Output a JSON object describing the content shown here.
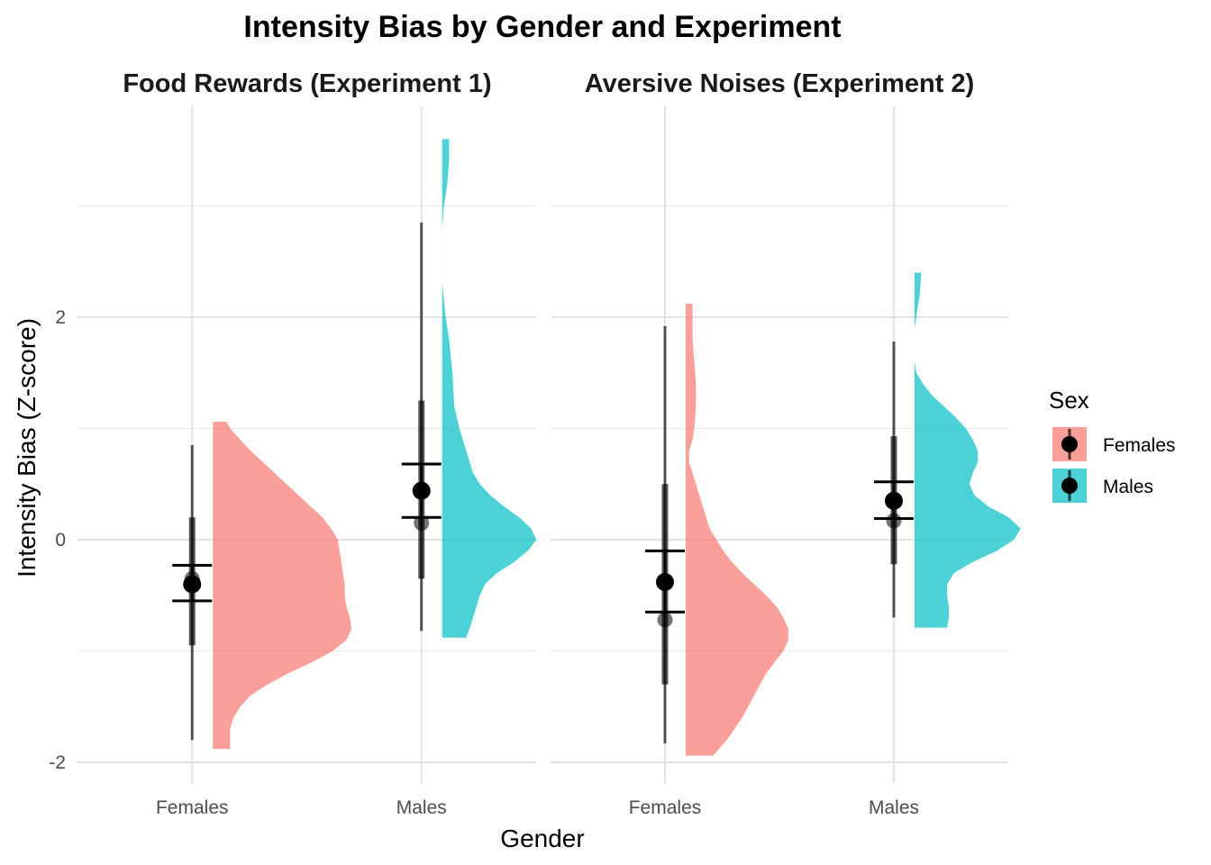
{
  "chart_data": {
    "type": "raincloud",
    "title": "Intensity Bias by Gender and Experiment",
    "xlabel": "Gender",
    "ylabel": "Intensity Bias (Z-score)",
    "ylim": [
      -2.2,
      3.9
    ],
    "y_ticks": [
      -2,
      0,
      2
    ],
    "y_tick_labels": [
      "-2",
      "0",
      "2"
    ],
    "grid": true,
    "categories": [
      "Females",
      "Males"
    ],
    "legend": {
      "title": "Sex",
      "position": "right",
      "entries": [
        {
          "label": "Females",
          "color": "#F8766D"
        },
        {
          "label": "Males",
          "color": "#00BFC4"
        }
      ]
    },
    "panels": [
      {
        "strip": "Food Rewards (Experiment 1)",
        "groups": [
          {
            "category": "Females",
            "color": "#F8766D",
            "box": {
              "min": -1.8,
              "q1": -0.95,
              "median": -0.35,
              "q3": 0.2,
              "max": 0.85
            },
            "mean": -0.4,
            "ci": [
              -0.55,
              -0.23
            ],
            "density": [
              [
                -1.88,
                0.1
              ],
              [
                -1.7,
                0.1
              ],
              [
                -1.6,
                0.12
              ],
              [
                -1.5,
                0.16
              ],
              [
                -1.4,
                0.22
              ],
              [
                -1.3,
                0.32
              ],
              [
                -1.2,
                0.44
              ],
              [
                -1.1,
                0.58
              ],
              [
                -1.0,
                0.7
              ],
              [
                -0.9,
                0.78
              ],
              [
                -0.8,
                0.81
              ],
              [
                -0.7,
                0.8
              ],
              [
                -0.6,
                0.78
              ],
              [
                -0.5,
                0.77
              ],
              [
                -0.4,
                0.77
              ],
              [
                -0.3,
                0.76
              ],
              [
                -0.2,
                0.75
              ],
              [
                -0.1,
                0.74
              ],
              [
                0.0,
                0.73
              ],
              [
                0.1,
                0.69
              ],
              [
                0.2,
                0.64
              ],
              [
                0.3,
                0.57
              ],
              [
                0.4,
                0.5
              ],
              [
                0.5,
                0.43
              ],
              [
                0.6,
                0.36
              ],
              [
                0.7,
                0.29
              ],
              [
                0.8,
                0.22
              ],
              [
                0.9,
                0.16
              ],
              [
                1.0,
                0.1
              ],
              [
                1.06,
                0.08
              ]
            ]
          },
          {
            "category": "Males",
            "color": "#00BFC4",
            "box": {
              "min": -0.82,
              "q1": -0.35,
              "median": 0.15,
              "q3": 1.25,
              "max": 2.85
            },
            "mean": 0.44,
            "ci": [
              0.2,
              0.68
            ],
            "density": [
              [
                -0.88,
                0.14
              ],
              [
                -0.8,
                0.16
              ],
              [
                -0.7,
                0.18
              ],
              [
                -0.6,
                0.2
              ],
              [
                -0.5,
                0.22
              ],
              [
                -0.4,
                0.25
              ],
              [
                -0.3,
                0.32
              ],
              [
                -0.2,
                0.42
              ],
              [
                -0.1,
                0.5
              ],
              [
                0.0,
                0.55
              ],
              [
                0.1,
                0.52
              ],
              [
                0.2,
                0.45
              ],
              [
                0.3,
                0.36
              ],
              [
                0.4,
                0.28
              ],
              [
                0.5,
                0.22
              ],
              [
                0.6,
                0.18
              ],
              [
                0.8,
                0.14
              ],
              [
                1.0,
                0.1
              ],
              [
                1.2,
                0.07
              ],
              [
                1.5,
                0.06
              ],
              [
                1.8,
                0.04
              ],
              [
                2.0,
                0.02
              ],
              [
                2.3,
                0.0
              ],
              [
                2.6,
                0.0
              ],
              [
                2.8,
                0.0
              ],
              [
                3.0,
                0.01
              ],
              [
                3.2,
                0.03
              ],
              [
                3.4,
                0.04
              ],
              [
                3.6,
                0.04
              ]
            ]
          }
        ]
      },
      {
        "strip": "Aversive Noises (Experiment 2)",
        "groups": [
          {
            "category": "Females",
            "color": "#F8766D",
            "box": {
              "min": -1.83,
              "q1": -1.3,
              "median": -0.72,
              "q3": 0.5,
              "max": 1.92
            },
            "mean": -0.38,
            "ci": [
              -0.65,
              -0.1
            ],
            "density": [
              [
                -1.94,
                0.16
              ],
              [
                -1.8,
                0.24
              ],
              [
                -1.6,
                0.33
              ],
              [
                -1.4,
                0.4
              ],
              [
                -1.2,
                0.47
              ],
              [
                -1.0,
                0.57
              ],
              [
                -0.9,
                0.6
              ],
              [
                -0.8,
                0.6
              ],
              [
                -0.7,
                0.57
              ],
              [
                -0.6,
                0.53
              ],
              [
                -0.5,
                0.47
              ],
              [
                -0.4,
                0.4
              ],
              [
                -0.3,
                0.33
              ],
              [
                -0.2,
                0.27
              ],
              [
                -0.1,
                0.22
              ],
              [
                0.0,
                0.18
              ],
              [
                0.1,
                0.14
              ],
              [
                0.2,
                0.12
              ],
              [
                0.3,
                0.1
              ],
              [
                0.4,
                0.08
              ],
              [
                0.5,
                0.06
              ],
              [
                0.6,
                0.04
              ],
              [
                0.7,
                0.02
              ],
              [
                0.8,
                0.02
              ],
              [
                0.9,
                0.04
              ],
              [
                1.0,
                0.05
              ],
              [
                1.2,
                0.06
              ],
              [
                1.4,
                0.06
              ],
              [
                1.6,
                0.05
              ],
              [
                1.8,
                0.04
              ],
              [
                2.0,
                0.04
              ],
              [
                2.12,
                0.04
              ]
            ]
          },
          {
            "category": "Males",
            "color": "#00BFC4",
            "box": {
              "min": -0.7,
              "q1": -0.22,
              "median": 0.17,
              "q3": 0.93,
              "max": 1.78
            },
            "mean": 0.35,
            "ci": [
              0.19,
              0.52
            ],
            "density": [
              [
                -0.79,
                0.19
              ],
              [
                -0.7,
                0.2
              ],
              [
                -0.6,
                0.2
              ],
              [
                -0.5,
                0.19
              ],
              [
                -0.4,
                0.19
              ],
              [
                -0.3,
                0.23
              ],
              [
                -0.2,
                0.34
              ],
              [
                -0.1,
                0.48
              ],
              [
                0.0,
                0.58
              ],
              [
                0.1,
                0.62
              ],
              [
                0.2,
                0.55
              ],
              [
                0.3,
                0.43
              ],
              [
                0.4,
                0.35
              ],
              [
                0.5,
                0.32
              ],
              [
                0.6,
                0.34
              ],
              [
                0.7,
                0.37
              ],
              [
                0.8,
                0.37
              ],
              [
                0.9,
                0.34
              ],
              [
                1.0,
                0.3
              ],
              [
                1.1,
                0.24
              ],
              [
                1.2,
                0.17
              ],
              [
                1.3,
                0.1
              ],
              [
                1.4,
                0.05
              ],
              [
                1.5,
                0.01
              ],
              [
                1.6,
                0.0
              ],
              [
                1.7,
                0.0
              ],
              [
                1.8,
                0.0
              ],
              [
                1.9,
                0.0
              ],
              [
                2.0,
                0.01
              ],
              [
                2.2,
                0.03
              ],
              [
                2.4,
                0.04
              ]
            ]
          }
        ]
      }
    ]
  }
}
